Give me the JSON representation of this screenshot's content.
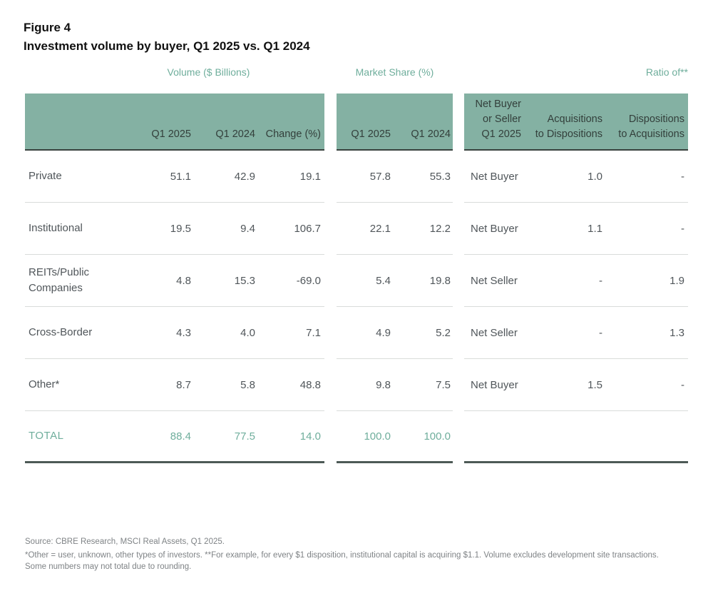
{
  "figure": {
    "label": "Figure 4",
    "title": "Investment volume by buyer, Q1 2025 vs. Q1 2024"
  },
  "colors": {
    "band_teal": "#84b1a3",
    "accent_teal_text": "#6fae9c",
    "band_header_text": "#333f3b",
    "band_underline": "#39423f",
    "total_underline": "#4d5a56",
    "row_divider": "#d9dcda",
    "body_text": "#50565a"
  },
  "table": {
    "group_headers": {
      "volume": "Volume ($ Billions)",
      "market_share": "Market Share (%)",
      "ratio": "Ratio of**"
    },
    "columns": {
      "volume": [
        "Q1 2025",
        "Q1 2024",
        "Change (%)"
      ],
      "market_share": [
        "Q1 2025",
        "Q1 2024"
      ],
      "ratio_a": "Net Buyer\nor Seller\nQ1 2025",
      "ratio_b": "Acquisitions\nto Dispositions",
      "ratio_c": "Dispositions\nto Acquisitions"
    },
    "rows": [
      {
        "label": "Private",
        "vol_2025": "51.1",
        "vol_2024": "42.9",
        "change": "19.1",
        "ms_2025": "57.8",
        "ms_2024": "55.3",
        "net": "Net Buyer",
        "acq_to_disp": "1.0",
        "disp_to_acq": "-"
      },
      {
        "label": "Institutional",
        "vol_2025": "19.5",
        "vol_2024": "9.4",
        "change": "106.7",
        "ms_2025": "22.1",
        "ms_2024": "12.2",
        "net": "Net Buyer",
        "acq_to_disp": "1.1",
        "disp_to_acq": "-"
      },
      {
        "label": "REITs/Public Companies",
        "vol_2025": "4.8",
        "vol_2024": "15.3",
        "change": "-69.0",
        "ms_2025": "5.4",
        "ms_2024": "19.8",
        "net": "Net Seller",
        "acq_to_disp": "-",
        "disp_to_acq": "1.9"
      },
      {
        "label": "Cross-Border",
        "vol_2025": "4.3",
        "vol_2024": "4.0",
        "change": "7.1",
        "ms_2025": "4.9",
        "ms_2024": "5.2",
        "net": "Net Seller",
        "acq_to_disp": "-",
        "disp_to_acq": "1.3"
      },
      {
        "label": "Other*",
        "vol_2025": "8.7",
        "vol_2024": "5.8",
        "change": "48.8",
        "ms_2025": "9.8",
        "ms_2024": "7.5",
        "net": "Net Buyer",
        "acq_to_disp": "1.5",
        "disp_to_acq": "-"
      }
    ],
    "total": {
      "label": "TOTAL",
      "vol_2025": "88.4",
      "vol_2024": "77.5",
      "change": "14.0",
      "ms_2025": "100.0",
      "ms_2024": "100.0",
      "net": "",
      "acq_to_disp": "",
      "disp_to_acq": ""
    }
  },
  "footnotes": {
    "source": "Source: CBRE Research, MSCI Real Assets, Q1 2025.",
    "note": "*Other = user, unknown, other types of investors. **For example, for every $1 disposition, institutional capital is acquiring $1.1. Volume excludes development site transactions. Some numbers may not total due to rounding."
  },
  "chart_data": {
    "type": "table",
    "title": "Figure 4 — Investment volume by buyer, Q1 2025 vs. Q1 2024",
    "column_groups": [
      "Volume ($ Billions)",
      "Market Share (%)",
      "Ratio of**"
    ],
    "columns": [
      "Buyer",
      "Volume Q1 2025",
      "Volume Q1 2024",
      "Volume Change (%)",
      "Market Share Q1 2025 (%)",
      "Market Share Q1 2024 (%)",
      "Net Buyer or Seller Q1 2025",
      "Acquisitions to Dispositions",
      "Dispositions to Acquisitions"
    ],
    "rows": [
      [
        "Private",
        51.1,
        42.9,
        19.1,
        57.8,
        55.3,
        "Net Buyer",
        1.0,
        null
      ],
      [
        "Institutional",
        19.5,
        9.4,
        106.7,
        22.1,
        12.2,
        "Net Buyer",
        1.1,
        null
      ],
      [
        "REITs/Public Companies",
        4.8,
        15.3,
        -69.0,
        5.4,
        19.8,
        "Net Seller",
        null,
        1.9
      ],
      [
        "Cross-Border",
        4.3,
        4.0,
        7.1,
        4.9,
        5.2,
        "Net Seller",
        null,
        1.3
      ],
      [
        "Other*",
        8.7,
        5.8,
        48.8,
        9.8,
        7.5,
        "Net Buyer",
        1.5,
        null
      ],
      [
        "TOTAL",
        88.4,
        77.5,
        14.0,
        100.0,
        100.0,
        null,
        null,
        null
      ]
    ]
  }
}
